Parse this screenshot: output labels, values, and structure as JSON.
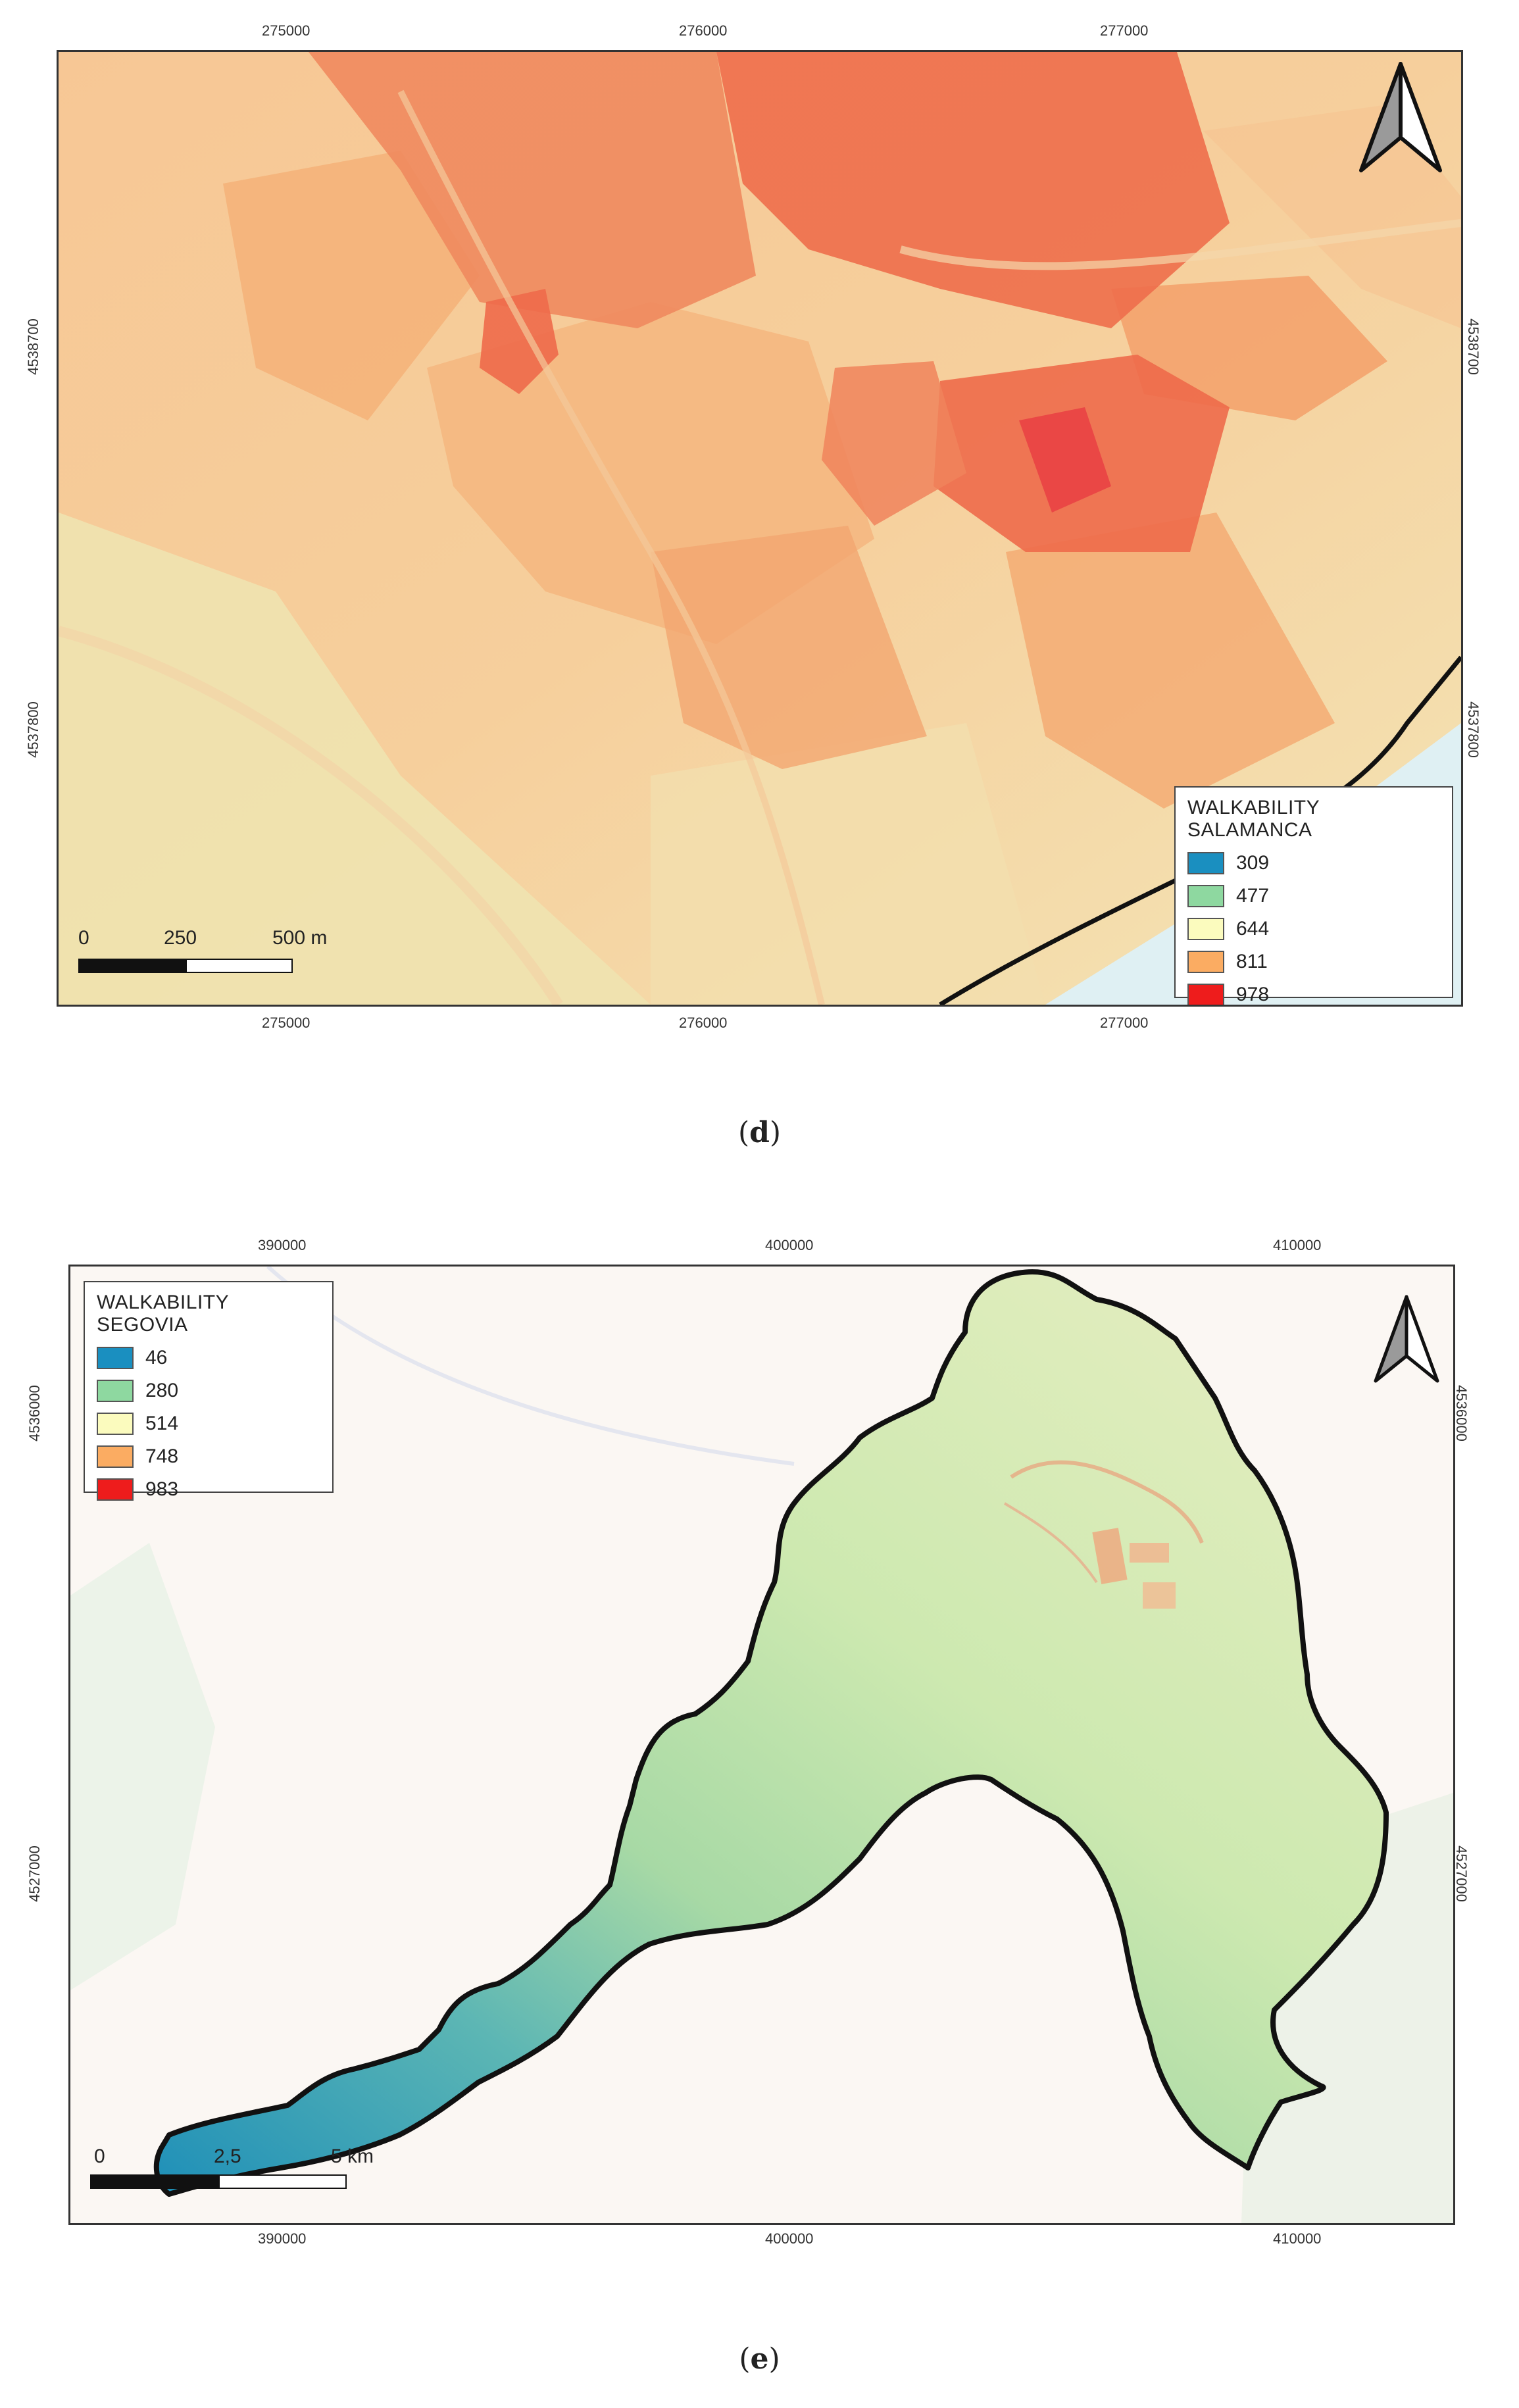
{
  "panel_d": {
    "caption_letter": "d",
    "x_ticks_top": [
      "275000",
      "276000",
      "277000"
    ],
    "x_ticks_bottom": [
      "275000",
      "276000",
      "277000"
    ],
    "y_ticks_left": [
      "4538700",
      "4537800"
    ],
    "y_ticks_right": [
      "4538700",
      "4537800"
    ],
    "legend": {
      "title": "WALKABILITY SALAMANCA",
      "items": [
        {
          "value": "309",
          "color": "#1a8fc0"
        },
        {
          "value": "477",
          "color": "#8ed8a0"
        },
        {
          "value": "644",
          "color": "#fbfbbe"
        },
        {
          "value": "811",
          "color": "#fbac62"
        },
        {
          "value": "978",
          "color": "#ee1c1c"
        }
      ]
    },
    "scale": {
      "labels": [
        "0",
        "250",
        "500 m"
      ]
    }
  },
  "panel_e": {
    "caption_letter": "e",
    "x_ticks_top": [
      "390000",
      "400000",
      "410000"
    ],
    "x_ticks_bottom": [
      "390000",
      "400000",
      "410000"
    ],
    "y_ticks_left": [
      "4536000",
      "4527000"
    ],
    "y_ticks_right": [
      "4536000",
      "4527000"
    ],
    "legend": {
      "title": "WALKABILITY SEGOVIA",
      "items": [
        {
          "value": "46",
          "color": "#1a8fc0"
        },
        {
          "value": "280",
          "color": "#8ed8a0"
        },
        {
          "value": "514",
          "color": "#fbfbbe"
        },
        {
          "value": "748",
          "color": "#fbac62"
        },
        {
          "value": "983",
          "color": "#ee1c1c"
        }
      ]
    },
    "scale": {
      "labels": [
        "0",
        "2,5",
        "5 km"
      ]
    }
  },
  "icons": {
    "north_arrow": "north-arrow-icon"
  }
}
